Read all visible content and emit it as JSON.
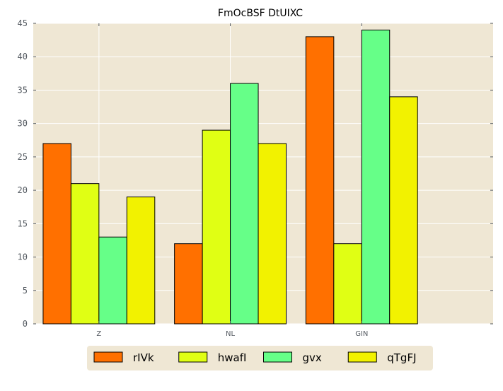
{
  "chart_data": {
    "type": "bar",
    "title": "FmOcBSF DtUIXC",
    "xlabel": "",
    "ylabel": "",
    "categories": [
      "Z",
      "NL",
      "GIN"
    ],
    "series": [
      {
        "name": "rIVk",
        "values": [
          27,
          12,
          43
        ],
        "color": "#ff7000"
      },
      {
        "name": "hwafI",
        "values": [
          21,
          29,
          12
        ],
        "color": "#e0ff14"
      },
      {
        "name": "gvx",
        "values": [
          13,
          36,
          44
        ],
        "color": "#66ff88"
      },
      {
        "name": "qTgFJ",
        "values": [
          19,
          27,
          34
        ],
        "color": "#f2f200"
      }
    ],
    "ylim": [
      0,
      45
    ],
    "xlim": [
      -0.5,
      3.0
    ],
    "yticks": [
      0,
      5,
      10,
      15,
      20,
      25,
      30,
      35,
      40,
      45
    ],
    "grid": true,
    "legend_position": "bottom-center",
    "colors": {
      "plot_background": "#efe7d4",
      "grid": "#ffffff",
      "legend_background": "#efe7d4",
      "tick_text": "#555b62",
      "bar_edge": "#000000"
    }
  }
}
